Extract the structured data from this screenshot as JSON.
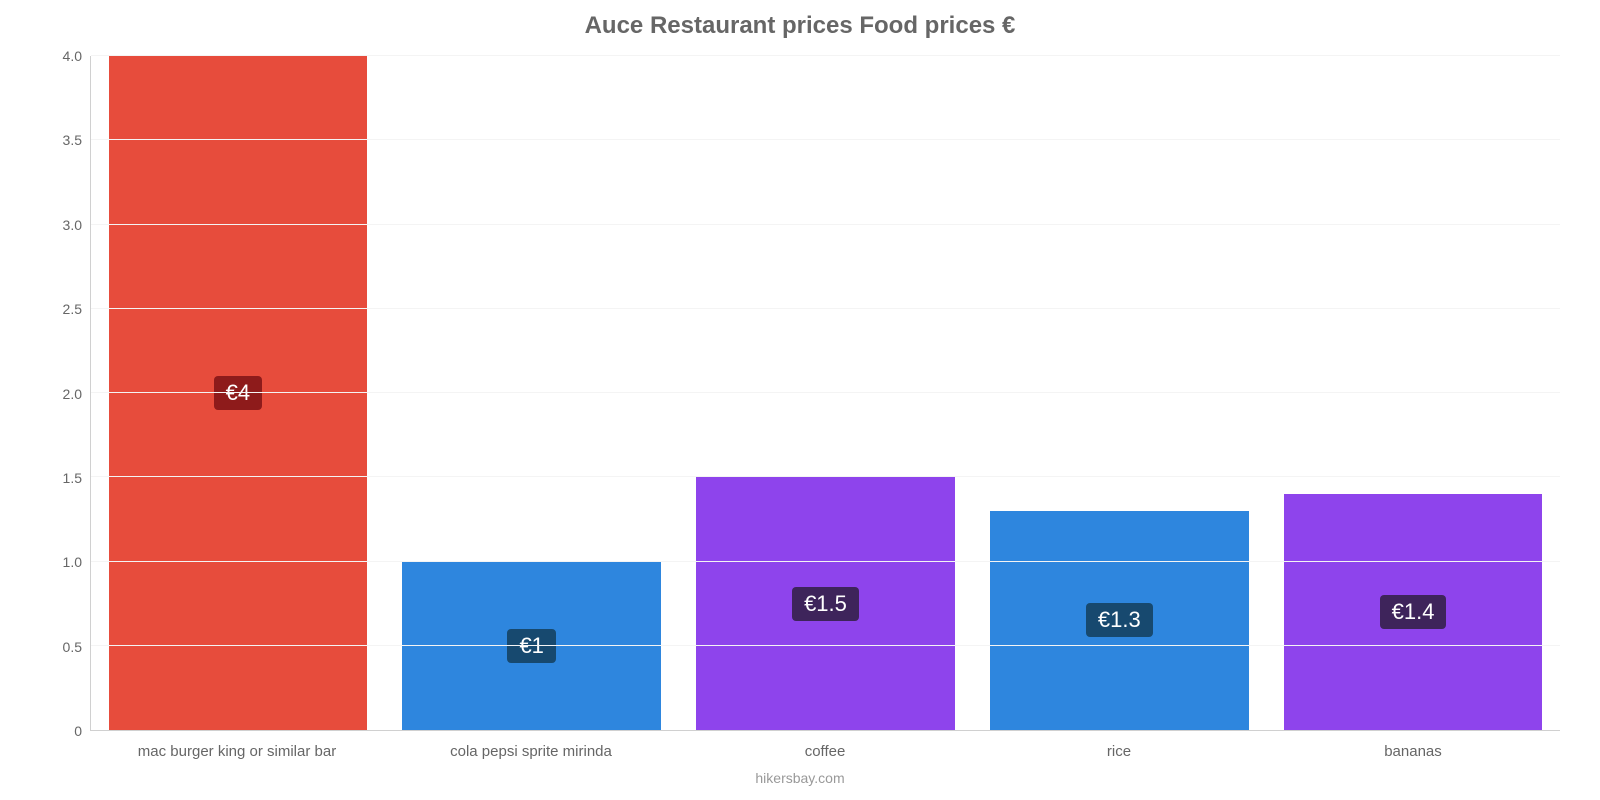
{
  "chart": {
    "type": "bar",
    "title": "Auce Restaurant prices Food prices €",
    "title_fontsize": 24,
    "title_color": "#666666",
    "attribution": "hikersbay.com",
    "attribution_color": "#999999",
    "background_color": "#ffffff",
    "grid_color": "#f4f4f4",
    "axis_line_color": "#d0d0d0",
    "label_color": "#666666",
    "label_fontsize": 15,
    "ylim": [
      0,
      4.0
    ],
    "ytick_step": 0.5,
    "yticks": [
      "0",
      "0.5",
      "1.0",
      "1.5",
      "2.0",
      "2.5",
      "3.0",
      "3.5",
      "4.0"
    ],
    "bar_width_pct": 88,
    "value_label_fontsize": 22,
    "value_label_color": "#ffffff",
    "categories": [
      "mac burger king or similar bar",
      "cola pepsi sprite mirinda",
      "coffee",
      "rice",
      "bananas"
    ],
    "values": [
      4.0,
      1.0,
      1.5,
      1.3,
      1.4
    ],
    "value_labels": [
      "€4",
      "€1",
      "€1.5",
      "€1.3",
      "€1.4"
    ],
    "bar_colors": [
      "#e74c3c",
      "#2e86de",
      "#8e44ec",
      "#2e86de",
      "#8e44ec"
    ],
    "value_badge_colors": [
      "#8e1b1b",
      "#17496f",
      "#3e245b",
      "#17496f",
      "#3e245b"
    ]
  }
}
